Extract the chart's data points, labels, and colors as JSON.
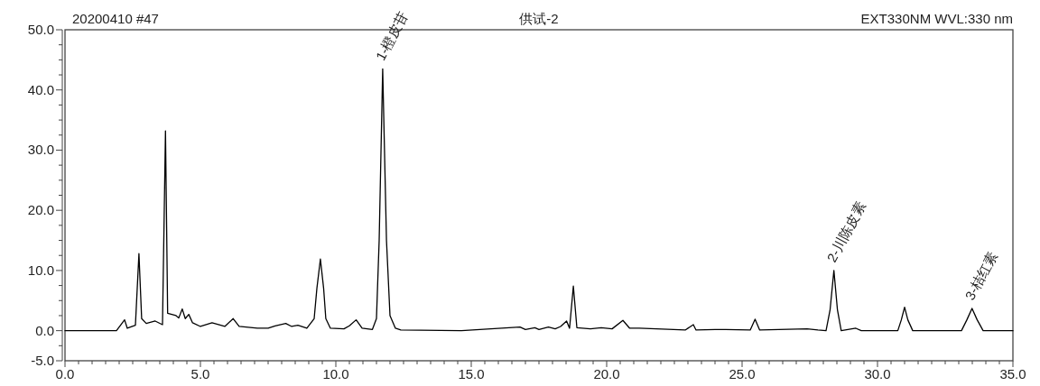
{
  "chart_data": {
    "type": "line",
    "title": "供试-2",
    "annotations": [
      "20200410 #47",
      "EXT330NM WVL:330 nm",
      {
        "text": "1-橙皮苷",
        "x": 11.73,
        "y": 43.5
      },
      {
        "text": "2-川陈皮素",
        "x": 28.39,
        "y": 10.0
      },
      {
        "text": "3-桔红素",
        "x": 33.49,
        "y": 3.7
      }
    ],
    "series": [
      {
        "color": "#000000",
        "x": [
          0,
          1.9,
          2.2,
          2.3,
          2.6,
          2.73,
          2.83,
          3.0,
          3.33,
          3.6,
          3.71,
          3.79,
          4.1,
          4.2,
          4.33,
          4.44,
          4.57,
          4.71,
          5.0,
          5.43,
          5.9,
          6.21,
          6.43,
          7.1,
          7.5,
          7.76,
          8.15,
          8.37,
          8.6,
          8.93,
          9.2,
          9.3,
          9.43,
          9.55,
          9.63,
          9.8,
          10.3,
          10.5,
          10.75,
          10.97,
          11.35,
          11.5,
          11.6,
          11.73,
          11.87,
          12.0,
          12.2,
          12.4,
          14.64,
          16.8,
          17.0,
          17.35,
          17.5,
          17.85,
          18.1,
          18.3,
          18.52,
          18.63,
          18.77,
          18.9,
          19.4,
          19.8,
          20.2,
          20.6,
          20.85,
          21.2,
          22.9,
          23.2,
          23.3,
          24.0,
          24.4,
          25.3,
          25.48,
          25.65,
          27.4,
          27.8,
          28.1,
          28.25,
          28.39,
          28.52,
          28.66,
          29.2,
          29.4,
          30.75,
          30.88,
          31.0,
          31.12,
          31.3,
          33.1,
          33.3,
          33.49,
          33.68,
          33.9,
          35.0
        ],
        "values": [
          0,
          0,
          1.8,
          0.4,
          0.9,
          12.8,
          2.0,
          1.2,
          1.6,
          1.0,
          33.2,
          2.9,
          2.5,
          2.1,
          3.6,
          2.0,
          2.7,
          1.3,
          0.7,
          1.3,
          0.7,
          2.0,
          0.7,
          0.4,
          0.4,
          0.8,
          1.2,
          0.7,
          0.9,
          0.4,
          2.0,
          7,
          11.9,
          7,
          2.0,
          0.4,
          0.3,
          0.8,
          1.8,
          0.4,
          0.2,
          2.0,
          15,
          43.5,
          15,
          2.5,
          0.4,
          0.1,
          0,
          0.6,
          0.2,
          0.5,
          0.2,
          0.6,
          0.3,
          0.7,
          1.6,
          0.4,
          7.4,
          0.5,
          0.3,
          0.5,
          0.3,
          1.7,
          0.4,
          0.4,
          0.1,
          1.0,
          0.1,
          0.2,
          0.2,
          0.1,
          1.9,
          0.1,
          0.3,
          0.1,
          0,
          3.5,
          10.0,
          3.5,
          0,
          0.4,
          0,
          0,
          1.8,
          3.9,
          1.8,
          0,
          0,
          1.8,
          3.7,
          1.8,
          0,
          0
        ]
      }
    ],
    "xlim": [
      0,
      35
    ],
    "ylim": [
      -5,
      50
    ],
    "xticks": [
      {
        "value": 0,
        "label": "0.0"
      },
      {
        "value": 0.5,
        "label": null
      },
      {
        "value": 1,
        "label": null
      },
      {
        "value": 1.5,
        "label": null
      },
      {
        "value": 2,
        "label": null
      },
      {
        "value": 2.5,
        "label": null
      },
      {
        "value": 3,
        "label": null
      },
      {
        "value": 3.5,
        "label": null
      },
      {
        "value": 4,
        "label": null
      },
      {
        "value": 4.5,
        "label": null
      },
      {
        "value": 5,
        "label": "5.0"
      },
      {
        "value": 5.5,
        "label": null
      },
      {
        "value": 6,
        "label": null
      },
      {
        "value": 6.5,
        "label": null
      },
      {
        "value": 7,
        "label": null
      },
      {
        "value": 7.5,
        "label": null
      },
      {
        "value": 8,
        "label": null
      },
      {
        "value": 8.5,
        "label": null
      },
      {
        "value": 9,
        "label": null
      },
      {
        "value": 9.5,
        "label": null
      },
      {
        "value": 10,
        "label": "10.0"
      },
      {
        "value": 10.5,
        "label": null
      },
      {
        "value": 11,
        "label": null
      },
      {
        "value": 11.5,
        "label": null
      },
      {
        "value": 12,
        "label": null
      },
      {
        "value": 12.5,
        "label": null
      },
      {
        "value": 13,
        "label": null
      },
      {
        "value": 13.5,
        "label": null
      },
      {
        "value": 14,
        "label": null
      },
      {
        "value": 14.5,
        "label": null
      },
      {
        "value": 15,
        "label": "15.0"
      },
      {
        "value": 15.5,
        "label": null
      },
      {
        "value": 16,
        "label": null
      },
      {
        "value": 16.5,
        "label": null
      },
      {
        "value": 17,
        "label": null
      },
      {
        "value": 17.5,
        "label": null
      },
      {
        "value": 18,
        "label": null
      },
      {
        "value": 18.5,
        "label": null
      },
      {
        "value": 19,
        "label": null
      },
      {
        "value": 19.5,
        "label": null
      },
      {
        "value": 20,
        "label": "20.0"
      },
      {
        "value": 20.5,
        "label": null
      },
      {
        "value": 21,
        "label": null
      },
      {
        "value": 21.5,
        "label": null
      },
      {
        "value": 22,
        "label": null
      },
      {
        "value": 22.5,
        "label": null
      },
      {
        "value": 23,
        "label": null
      },
      {
        "value": 23.5,
        "label": null
      },
      {
        "value": 24,
        "label": null
      },
      {
        "value": 24.5,
        "label": null
      },
      {
        "value": 25,
        "label": "25.0"
      },
      {
        "value": 25.5,
        "label": null
      },
      {
        "value": 26,
        "label": null
      },
      {
        "value": 26.5,
        "label": null
      },
      {
        "value": 27,
        "label": null
      },
      {
        "value": 27.5,
        "label": null
      },
      {
        "value": 28,
        "label": null
      },
      {
        "value": 28.5,
        "label": null
      },
      {
        "value": 29,
        "label": null
      },
      {
        "value": 29.5,
        "label": null
      },
      {
        "value": 30,
        "label": "30.0"
      },
      {
        "value": 30.5,
        "label": null
      },
      {
        "value": 31,
        "label": null
      },
      {
        "value": 31.5,
        "label": null
      },
      {
        "value": 32,
        "label": null
      },
      {
        "value": 32.5,
        "label": null
      },
      {
        "value": 33,
        "label": null
      },
      {
        "value": 33.5,
        "label": null
      },
      {
        "value": 34,
        "label": null
      },
      {
        "value": 34.5,
        "label": null
      },
      {
        "value": 35,
        "label": "35.0"
      }
    ],
    "yticks": [
      {
        "value": -5,
        "label": "-5.0"
      },
      {
        "value": -2.5,
        "label": null
      },
      {
        "value": 0,
        "label": "0.0"
      },
      {
        "value": 2.5,
        "label": null
      },
      {
        "value": 5,
        "label": null
      },
      {
        "value": 7.5,
        "label": null
      },
      {
        "value": 10,
        "label": "10.0"
      },
      {
        "value": 12.5,
        "label": null
      },
      {
        "value": 15,
        "label": null
      },
      {
        "value": 17.5,
        "label": null
      },
      {
        "value": 20,
        "label": "20.0"
      },
      {
        "value": 22.5,
        "label": null
      },
      {
        "value": 25,
        "label": null
      },
      {
        "value": 27.5,
        "label": null
      },
      {
        "value": 30,
        "label": "30.0"
      },
      {
        "value": 32.5,
        "label": null
      },
      {
        "value": 35,
        "label": null
      },
      {
        "value": 37.5,
        "label": null
      },
      {
        "value": 40,
        "label": "40.0"
      },
      {
        "value": 42.5,
        "label": null
      },
      {
        "value": 45,
        "label": null
      },
      {
        "value": 47.5,
        "label": null
      },
      {
        "value": 50,
        "label": "50.0"
      }
    ],
    "grid": false,
    "marker": "none",
    "line_style": "solid"
  }
}
